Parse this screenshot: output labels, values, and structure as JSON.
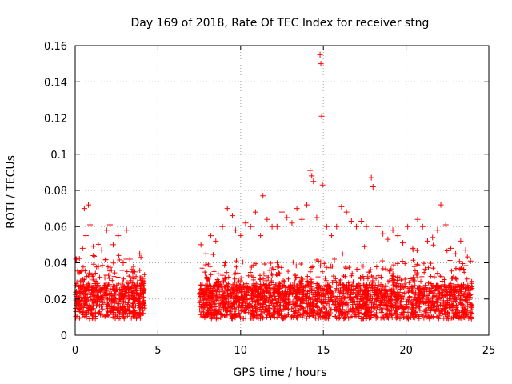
{
  "chart_data": {
    "type": "scatter",
    "title": "Day 169 of 2018, Rate Of TEC Index for receiver stng",
    "xlabel": "GPS time / hours",
    "ylabel": "ROTI / TECUs",
    "xlim": [
      0,
      25
    ],
    "ylim": [
      0,
      0.16
    ],
    "xticks": [
      0,
      5,
      10,
      15,
      20,
      25
    ],
    "xtick_labels": [
      "0",
      "5",
      "10",
      "15",
      "20",
      "25"
    ],
    "yticks": [
      0,
      0.02,
      0.04,
      0.06,
      0.08,
      0.1,
      0.12,
      0.14,
      0.16
    ],
    "ytick_labels": [
      "0",
      "0.02",
      "0.04",
      "0.06",
      "0.08",
      "0.1",
      "0.12",
      "0.14",
      "0.16"
    ],
    "grid": true,
    "marker": "+",
    "color": "#ff0000",
    "data_gap_hours": [
      4.2,
      7.5
    ],
    "series": [
      {
        "name": "ROTI",
        "x": [
          0.05,
          0.3,
          0.45,
          0.55,
          0.65,
          0.8,
          0.9,
          1.1,
          1.4,
          1.6,
          1.9,
          2.1,
          2.3,
          2.6,
          2.9,
          3.1,
          3.3,
          3.6,
          3.9,
          4.1,
          7.6,
          7.9,
          8.2,
          8.5,
          8.9,
          9.2,
          9.5,
          9.7,
          10.0,
          10.3,
          10.6,
          10.9,
          11.2,
          11.35,
          11.6,
          11.9,
          12.2,
          12.5,
          12.8,
          13.1,
          13.4,
          13.7,
          14.0,
          14.2,
          14.3,
          14.4,
          14.6,
          14.8,
          14.85,
          14.9,
          14.95,
          15.2,
          15.5,
          15.8,
          16.1,
          16.4,
          16.7,
          17.0,
          17.3,
          17.6,
          17.9,
          18.0,
          18.3,
          18.6,
          18.9,
          19.2,
          19.5,
          19.8,
          20.1,
          20.4,
          20.7,
          21.0,
          21.3,
          21.6,
          21.9,
          22.1,
          22.4,
          22.7,
          23.0,
          23.3,
          23.6,
          23.9
        ],
        "y": [
          0.042,
          0.025,
          0.048,
          0.07,
          0.055,
          0.072,
          0.061,
          0.044,
          0.038,
          0.047,
          0.058,
          0.061,
          0.05,
          0.055,
          0.04,
          0.058,
          0.042,
          0.035,
          0.045,
          0.03,
          0.05,
          0.045,
          0.055,
          0.052,
          0.06,
          0.07,
          0.066,
          0.058,
          0.055,
          0.062,
          0.06,
          0.068,
          0.055,
          0.077,
          0.064,
          0.06,
          0.06,
          0.068,
          0.065,
          0.062,
          0.07,
          0.064,
          0.072,
          0.091,
          0.088,
          0.085,
          0.065,
          0.155,
          0.15,
          0.121,
          0.083,
          0.06,
          0.055,
          0.06,
          0.071,
          0.068,
          0.063,
          0.06,
          0.063,
          0.06,
          0.087,
          0.082,
          0.06,
          0.056,
          0.053,
          0.058,
          0.055,
          0.051,
          0.06,
          0.048,
          0.064,
          0.06,
          0.052,
          0.054,
          0.058,
          0.072,
          0.061,
          0.048,
          0.045,
          0.052,
          0.047,
          0.041
        ]
      }
    ]
  }
}
